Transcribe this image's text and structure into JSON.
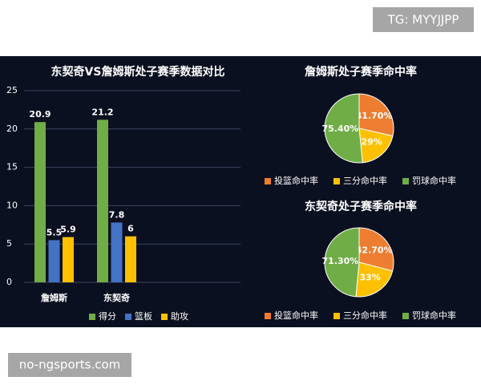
{
  "watermarks": [
    "TG: MYYJJPP",
    "no-ngsports.com"
  ],
  "chart_data": [
    {
      "type": "bar",
      "title": "东契奇VS詹姆斯处子赛季数据对比",
      "categories": [
        "詹姆斯",
        "东契奇"
      ],
      "series": [
        {
          "name": "得分",
          "color": "#70ad47",
          "values": [
            20.9,
            21.2
          ]
        },
        {
          "name": "篮板",
          "color": "#4472c4",
          "values": [
            5.5,
            7.8
          ]
        },
        {
          "name": "助攻",
          "color": "#ffc000",
          "values": [
            5.9,
            6
          ]
        }
      ],
      "ylim": [
        0,
        25
      ],
      "yticks": [
        0,
        5,
        10,
        15,
        20,
        25
      ],
      "grid": true,
      "legend": "bottom"
    },
    {
      "type": "pie",
      "title": "詹姆斯处子赛季命中率",
      "categories": [
        "投篮命中率",
        "三分命中率",
        "罚球命中率"
      ],
      "values": [
        41.7,
        29,
        75.4
      ],
      "value_labels": [
        "41.70%",
        "29%",
        "75.40%"
      ],
      "colors": [
        "#ed7d31",
        "#ffc000",
        "#70ad47"
      ],
      "legend": "bottom"
    },
    {
      "type": "pie",
      "title": "东契奇处子赛季命中率",
      "categories": [
        "投篮命中率",
        "三分命中率",
        "罚球命中率"
      ],
      "values": [
        42.7,
        33,
        71.3
      ],
      "value_labels": [
        "42.70%",
        "33%",
        "71.30%"
      ],
      "colors": [
        "#ed7d31",
        "#ffc000",
        "#70ad47"
      ],
      "legend": "bottom"
    }
  ]
}
